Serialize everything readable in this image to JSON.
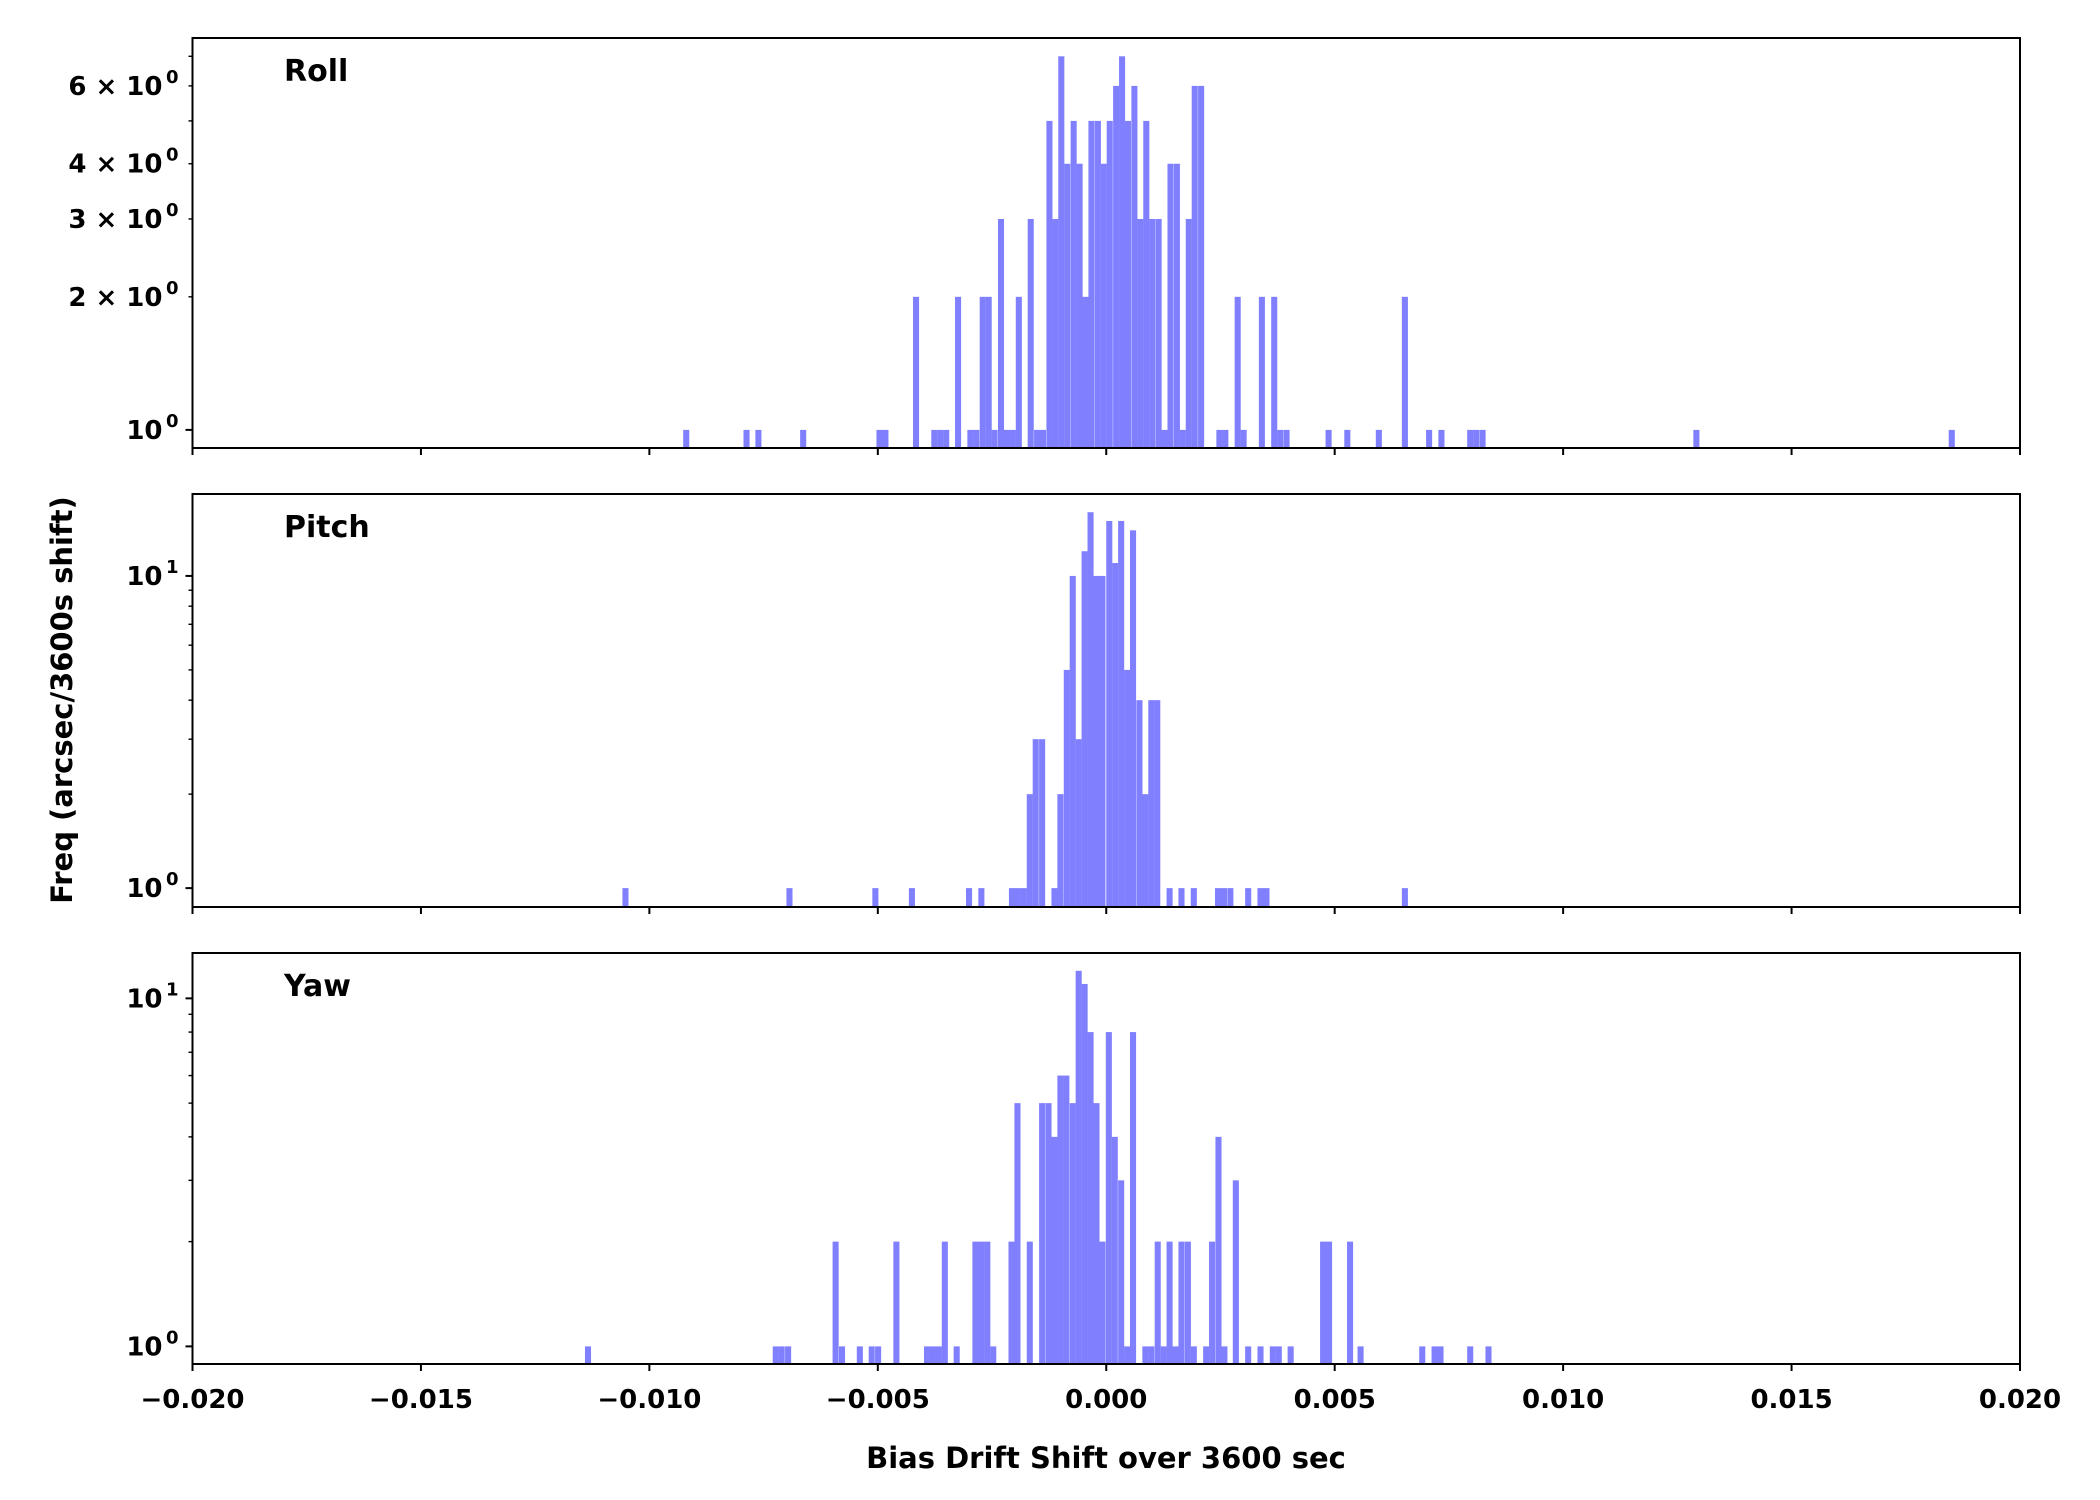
{
  "chart_data": [
    {
      "type": "bar",
      "title": "Roll",
      "yscale": "log",
      "ylim": [
        0.91,
        7.7
      ],
      "bin_width": 0.000133,
      "color": "#8080ff",
      "yticks": [
        {
          "value": 1,
          "label": "10",
          "exp": "0"
        },
        {
          "value": 2,
          "label": "2 × 10",
          "exp": "0"
        },
        {
          "value": 3,
          "label": "3 × 10",
          "exp": "0"
        },
        {
          "value": 4,
          "label": "4 × 10",
          "exp": "0"
        },
        {
          "value": 6,
          "label": "6 × 10",
          "exp": "0"
        }
      ],
      "minor_yticks": [
        5,
        7
      ],
      "bins": [
        [
          -0.00926,
          1
        ],
        [
          -0.00794,
          1
        ],
        [
          -0.00768,
          1
        ],
        [
          -0.0067,
          1
        ],
        [
          -0.00503,
          1
        ],
        [
          -0.0049,
          1
        ],
        [
          -0.00423,
          2
        ],
        [
          -0.00383,
          1
        ],
        [
          -0.0037,
          1
        ],
        [
          -0.00357,
          1
        ],
        [
          -0.00331,
          2
        ],
        [
          -0.00304,
          1
        ],
        [
          -0.00291,
          1
        ],
        [
          -0.00277,
          2
        ],
        [
          -0.00264,
          2
        ],
        [
          -0.00251,
          1
        ],
        [
          -0.00237,
          3
        ],
        [
          -0.00224,
          1
        ],
        [
          -0.00211,
          1
        ],
        [
          -0.00198,
          2
        ],
        [
          -0.00172,
          3
        ],
        [
          -0.00158,
          1
        ],
        [
          -0.00145,
          1
        ],
        [
          -0.00131,
          5
        ],
        [
          -0.00118,
          3
        ],
        [
          -0.00105,
          7
        ],
        [
          -0.00092,
          4
        ],
        [
          -0.00078,
          5
        ],
        [
          -0.00065,
          4
        ],
        [
          -0.00052,
          2
        ],
        [
          -0.00039,
          5
        ],
        [
          -0.00025,
          5
        ],
        [
          -0.00012,
          4
        ],
        [
          1e-05,
          5
        ],
        [
          0.00015,
          6
        ],
        [
          0.00028,
          7
        ],
        [
          0.00041,
          5
        ],
        [
          0.00055,
          6
        ],
        [
          0.00068,
          3
        ],
        [
          0.00081,
          5
        ],
        [
          0.00094,
          3
        ],
        [
          0.00108,
          3
        ],
        [
          0.00121,
          1
        ],
        [
          0.00134,
          4
        ],
        [
          0.00148,
          4
        ],
        [
          0.00161,
          1
        ],
        [
          0.00174,
          3
        ],
        [
          0.00187,
          6
        ],
        [
          0.00201,
          6
        ],
        [
          0.00241,
          1
        ],
        [
          0.00254,
          1
        ],
        [
          0.00281,
          2
        ],
        [
          0.00294,
          1
        ],
        [
          0.00334,
          2
        ],
        [
          0.00361,
          2
        ],
        [
          0.00374,
          1
        ],
        [
          0.00388,
          1
        ],
        [
          0.0048,
          1
        ],
        [
          0.00521,
          1
        ],
        [
          0.0059,
          1
        ],
        [
          0.00647,
          2
        ],
        [
          0.007,
          1
        ],
        [
          0.00727,
          1
        ],
        [
          0.0079,
          1
        ],
        [
          0.00803,
          1
        ],
        [
          0.00817,
          1
        ],
        [
          0.01285,
          1
        ],
        [
          0.01844,
          1
        ]
      ]
    },
    {
      "type": "bar",
      "title": "Pitch",
      "yscale": "log",
      "ylim": [
        0.87,
        18.3
      ],
      "bin_width": 0.000133,
      "color": "#8080ff",
      "yticks": [
        {
          "value": 1,
          "label": "10",
          "exp": "0"
        },
        {
          "value": 10,
          "label": "10",
          "exp": "1"
        }
      ],
      "minor_yticks": [
        2,
        3,
        4,
        5,
        6,
        7,
        8,
        9
      ],
      "bins": [
        [
          -0.01059,
          1
        ],
        [
          -0.007,
          1
        ],
        [
          -0.00512,
          1
        ],
        [
          -0.00432,
          1
        ],
        [
          -0.00307,
          1
        ],
        [
          -0.0028,
          1
        ],
        [
          -0.00213,
          1
        ],
        [
          -0.002,
          1
        ],
        [
          -0.00187,
          1
        ],
        [
          -0.00174,
          2
        ],
        [
          -0.00161,
          3
        ],
        [
          -0.00147,
          3
        ],
        [
          -0.0012,
          1
        ],
        [
          -0.00107,
          2
        ],
        [
          -0.00093,
          5
        ],
        [
          -0.0008,
          10
        ],
        [
          -0.00067,
          3
        ],
        [
          -0.00054,
          12
        ],
        [
          -0.00041,
          16
        ],
        [
          -0.00028,
          10
        ],
        [
          -0.00015,
          10
        ],
        [
          0.0,
          15
        ],
        [
          0.00013,
          11
        ],
        [
          0.00026,
          15
        ],
        [
          0.00039,
          5
        ],
        [
          0.00052,
          14
        ],
        [
          0.00066,
          4
        ],
        [
          0.00079,
          2
        ],
        [
          0.00092,
          4
        ],
        [
          0.00105,
          4
        ],
        [
          0.00132,
          1
        ],
        [
          0.00158,
          1
        ],
        [
          0.00185,
          1
        ],
        [
          0.00238,
          1
        ],
        [
          0.00251,
          1
        ],
        [
          0.00265,
          1
        ],
        [
          0.00304,
          1
        ],
        [
          0.00331,
          1
        ],
        [
          0.00344,
          1
        ],
        [
          0.00647,
          1
        ]
      ]
    },
    {
      "type": "bar",
      "title": "Yaw",
      "yscale": "log",
      "ylim": [
        0.89,
        13.5
      ],
      "bin_width": 0.000133,
      "color": "#8080ff",
      "yticks": [
        {
          "value": 1,
          "label": "10",
          "exp": "0"
        },
        {
          "value": 10,
          "label": "10",
          "exp": "1"
        }
      ],
      "minor_yticks": [
        2,
        3,
        4,
        5,
        6,
        7,
        8,
        9
      ],
      "bins": [
        [
          -0.01141,
          1
        ],
        [
          -0.0073,
          1
        ],
        [
          -0.00717,
          1
        ],
        [
          -0.00703,
          1
        ],
        [
          -0.00599,
          2
        ],
        [
          -0.00585,
          1
        ],
        [
          -0.00546,
          1
        ],
        [
          -0.0052,
          1
        ],
        [
          -0.00506,
          1
        ],
        [
          -0.00466,
          2
        ],
        [
          -0.00399,
          1
        ],
        [
          -0.00386,
          1
        ],
        [
          -0.00373,
          1
        ],
        [
          -0.0036,
          2
        ],
        [
          -0.00334,
          1
        ],
        [
          -0.00293,
          2
        ],
        [
          -0.0028,
          2
        ],
        [
          -0.00267,
          2
        ],
        [
          -0.00254,
          1
        ],
        [
          -0.00214,
          2
        ],
        [
          -0.00201,
          5
        ],
        [
          -0.00174,
          2
        ],
        [
          -0.00147,
          5
        ],
        [
          -0.00133,
          5
        ],
        [
          -0.0012,
          4
        ],
        [
          -0.00107,
          6
        ],
        [
          -0.00094,
          6
        ],
        [
          -0.0008,
          5
        ],
        [
          -0.00067,
          12
        ],
        [
          -0.00054,
          11
        ],
        [
          -0.00041,
          8
        ],
        [
          -0.00028,
          5
        ],
        [
          -0.00015,
          2
        ],
        [
          -1e-05,
          8
        ],
        [
          0.00012,
          4
        ],
        [
          0.00026,
          3
        ],
        [
          0.00039,
          1
        ],
        [
          0.00052,
          8
        ],
        [
          0.00079,
          1
        ],
        [
          0.00092,
          1
        ],
        [
          0.00106,
          2
        ],
        [
          0.00119,
          1
        ],
        [
          0.00132,
          2
        ],
        [
          0.00145,
          1
        ],
        [
          0.00158,
          2
        ],
        [
          0.00172,
          2
        ],
        [
          0.00185,
          1
        ],
        [
          0.00212,
          1
        ],
        [
          0.00225,
          2
        ],
        [
          0.00239,
          4
        ],
        [
          0.00252,
          1
        ],
        [
          0.00277,
          3
        ],
        [
          0.00304,
          1
        ],
        [
          0.00331,
          1
        ],
        [
          0.00358,
          1
        ],
        [
          0.00371,
          1
        ],
        [
          0.00397,
          1
        ],
        [
          0.00468,
          2
        ],
        [
          0.00481,
          2
        ],
        [
          0.00527,
          2
        ],
        [
          0.0055,
          1
        ],
        [
          0.00685,
          1
        ],
        [
          0.00712,
          1
        ],
        [
          0.00725,
          1
        ],
        [
          0.0079,
          1
        ],
        [
          0.0083,
          1
        ]
      ]
    }
  ],
  "xaxis": {
    "xlim": [
      -0.02,
      0.02
    ],
    "ticks": [
      {
        "value": -0.02,
        "label": "−0.020"
      },
      {
        "value": -0.015,
        "label": "−0.015"
      },
      {
        "value": -0.01,
        "label": "−0.010"
      },
      {
        "value": -0.005,
        "label": "−0.005"
      },
      {
        "value": 0.0,
        "label": "0.000"
      },
      {
        "value": 0.005,
        "label": "0.005"
      },
      {
        "value": 0.01,
        "label": "0.010"
      },
      {
        "value": 0.015,
        "label": "0.015"
      },
      {
        "value": 0.02,
        "label": "0.020"
      }
    ],
    "label": "Bias Drift Shift over 3600 sec"
  },
  "ylabel": "Freq (arcsec/3600s shift)"
}
